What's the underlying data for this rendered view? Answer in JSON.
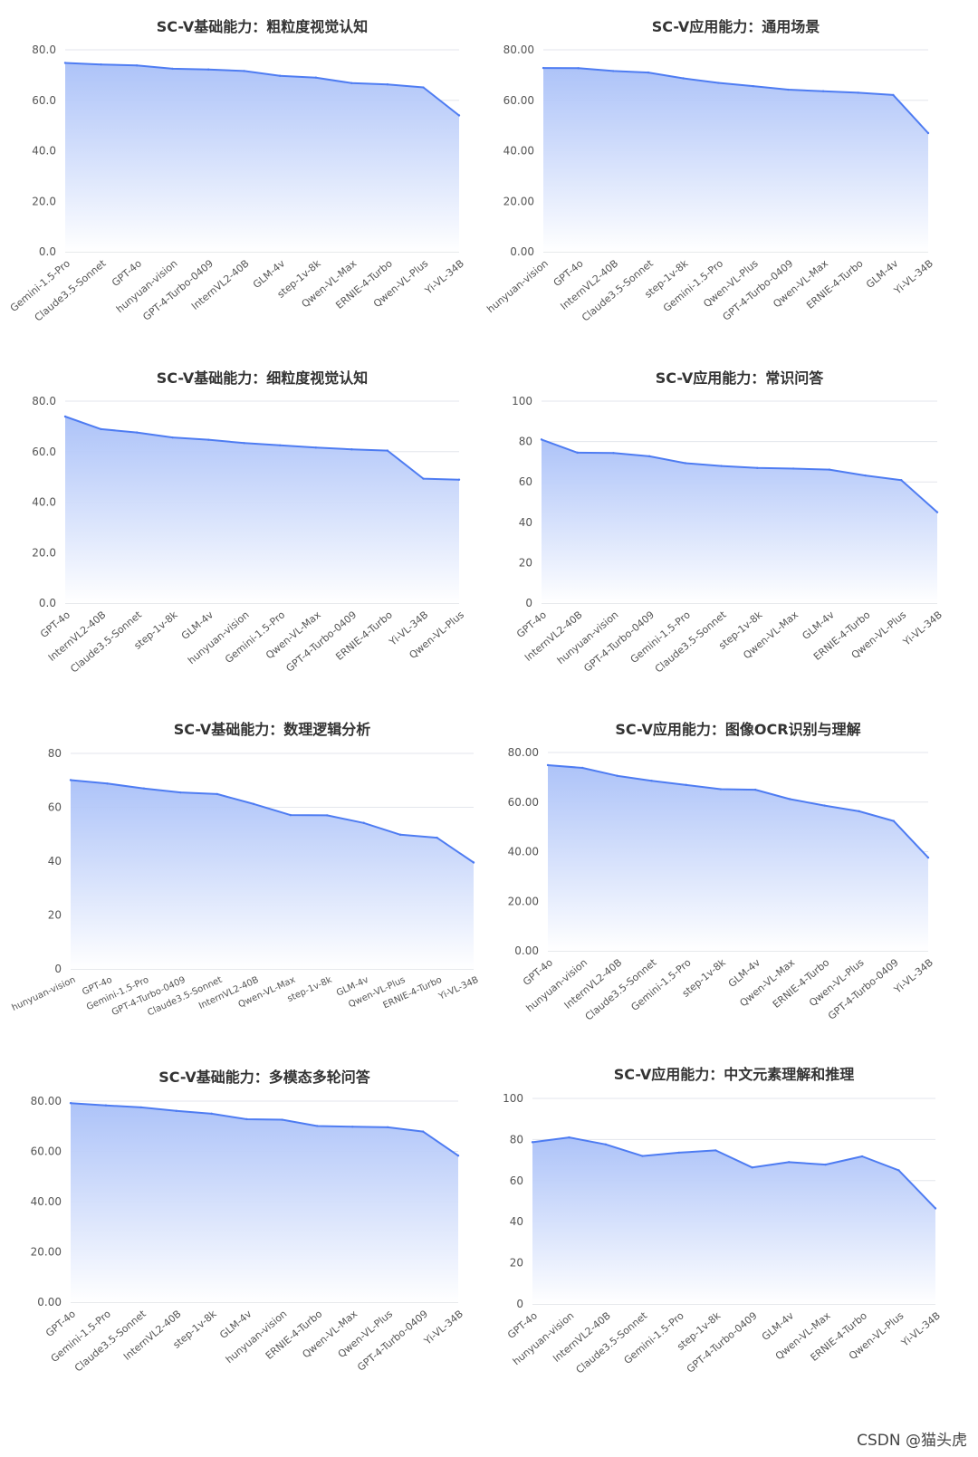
{
  "colors": {
    "line": "#4e7cf2",
    "fill_top": "#a9c0f8",
    "fill_bottom": "#ffffff",
    "grid": "#e3e6ec"
  },
  "watermark": "CSDN @猫头虎",
  "chart_data": [
    {
      "type": "area",
      "title": "SC-V基础能力：粗粒度视觉认知",
      "categories": [
        "Gemini-1.5-Pro",
        "Claude3.5-Sonnet",
        "GPT-4o",
        "hunyuan-vision",
        "GPT-4-Turbo-0409",
        "InternVL2-40B",
        "GLM-4v",
        "step-1v-8k",
        "Qwen-VL-Max",
        "ERNIE-4-Turbo",
        "Qwen-VL-Plus",
        "Yi-VL-34B"
      ],
      "values": [
        74.8,
        74.2,
        73.8,
        72.5,
        72.2,
        71.6,
        69.7,
        69.0,
        66.8,
        66.3,
        65.1,
        54.0
      ],
      "ylim": [
        0,
        80
      ],
      "yticks": [
        0,
        20,
        40,
        60,
        80
      ],
      "ytick_decimals": 1,
      "rotate": 40
    },
    {
      "type": "area",
      "title": "SC-V应用能力：通用场景",
      "categories": [
        "hunyuan-vision",
        "GPT-4o",
        "InternVL2-40B",
        "Claude3.5-Sonnet",
        "step-1v-8k",
        "Gemini-1.5-Pro",
        "Qwen-VL-Plus",
        "GPT-4-Turbo-0409",
        "Qwen-VL-Max",
        "ERNIE-4-Turbo",
        "GLM-4v",
        "Yi-VL-34B"
      ],
      "values": [
        72.8,
        72.7,
        71.6,
        71.0,
        68.7,
        66.9,
        65.6,
        64.2,
        63.6,
        63.0,
        62.1,
        47.0
      ],
      "ylim": [
        0,
        80
      ],
      "yticks": [
        0,
        20,
        40,
        60,
        80
      ],
      "ytick_decimals": 2,
      "rotate": 40
    },
    {
      "type": "area",
      "title": "SC-V基础能力：细粒度视觉认知",
      "categories": [
        "GPT-4o",
        "InternVL2-40B",
        "Claude3.5-Sonnet",
        "step-1v-8k",
        "GLM-4v",
        "hunyuan-vision",
        "Gemini-1.5-Pro",
        "Qwen-VL-Max",
        "GPT-4-Turbo-0409",
        "ERNIE-4-Turbo",
        "Yi-VL-34B",
        "Qwen-VL-Plus"
      ],
      "values": [
        73.9,
        68.9,
        67.6,
        65.6,
        64.7,
        63.4,
        62.5,
        61.6,
        60.9,
        60.4,
        49.3,
        48.9
      ],
      "ylim": [
        0,
        80
      ],
      "yticks": [
        0,
        20,
        40,
        60,
        80
      ],
      "ytick_decimals": 1,
      "rotate": 40
    },
    {
      "type": "area",
      "title": "SC-V应用能力：常识问答",
      "categories": [
        "GPT-4o",
        "InternVL2-40B",
        "hunyuan-vision",
        "GPT-4-Turbo-0409",
        "Gemini-1.5-Pro",
        "Claude3.5-Sonnet",
        "step-1v-8k",
        "Qwen-VL-Max",
        "GLM-4v",
        "ERNIE-4-Turbo",
        "Qwen-VL-Plus",
        "Yi-VL-34B"
      ],
      "values": [
        81.0,
        74.5,
        74.3,
        72.7,
        69.3,
        67.9,
        66.9,
        66.6,
        66.1,
        63.2,
        60.9,
        45.0
      ],
      "ylim": [
        0,
        100
      ],
      "yticks": [
        0,
        20,
        40,
        60,
        80,
        100
      ],
      "ytick_decimals": 0,
      "rotate": 40
    },
    {
      "type": "area",
      "title": "SC-V基础能力：数理逻辑分析",
      "categories": [
        "hunyuan-vision",
        "GPT-4o",
        "Gemini-1.5-Pro",
        "GPT-4-Turbo-0409",
        "Claude3.5-Sonnet",
        "InternVL2-40B",
        "Qwen-VL-Max",
        "step-1v-8k",
        "GLM-4v",
        "Qwen-VL-Plus",
        "ERNIE-4-Turbo",
        "Yi-VL-34B"
      ],
      "values": [
        70.1,
        68.8,
        67.0,
        65.5,
        64.9,
        61.2,
        57.1,
        57.0,
        54.2,
        49.8,
        48.7,
        39.5
      ],
      "ylim": [
        0,
        80
      ],
      "yticks": [
        0,
        20,
        40,
        60,
        80
      ],
      "ytick_decimals": 0,
      "rotate": 25
    },
    {
      "type": "area",
      "title": "SC-V应用能力：图像OCR识别与理解",
      "categories": [
        "GPT-4o",
        "hunyuan-vision",
        "InternVL2-40B",
        "Claude3.5-Sonnet",
        "Gemini-1.5-Pro",
        "step-1v-8k",
        "GLM-4v",
        "Qwen-VL-Max",
        "ERNIE-4-Turbo",
        "Qwen-VL-Plus",
        "GPT-4-Turbo-0409",
        "Yi-VL-34B"
      ],
      "values": [
        74.9,
        73.8,
        70.6,
        68.6,
        66.9,
        65.2,
        65.0,
        61.2,
        58.6,
        56.3,
        52.4,
        37.6
      ],
      "ylim": [
        0,
        80
      ],
      "yticks": [
        0,
        20,
        40,
        60,
        80
      ],
      "ytick_decimals": 2,
      "rotate": 40
    },
    {
      "type": "area",
      "title": "SC-V基础能力：多模态多轮问答",
      "categories": [
        "GPT-4o",
        "Gemini-1.5-Pro",
        "Claude3.5-Sonnet",
        "InternVL2-40B",
        "step-1v-8k",
        "GLM-4v",
        "hunyuan-vision",
        "ERNIE-4-Turbo",
        "Qwen-VL-Max",
        "Qwen-VL-Plus",
        "GPT-4-Turbo-0409",
        "Yi-VL-34B"
      ],
      "values": [
        79.2,
        78.3,
        77.5,
        76.1,
        75.0,
        72.8,
        72.6,
        70.1,
        69.8,
        69.6,
        67.9,
        58.3
      ],
      "ylim": [
        0,
        80
      ],
      "yticks": [
        0,
        20,
        40,
        60,
        80
      ],
      "ytick_decimals": 2,
      "rotate": 40
    },
    {
      "type": "area",
      "title": "SC-V应用能力：中文元素理解和推理",
      "categories": [
        "GPT-4o",
        "hunyuan-vision",
        "InternVL2-40B",
        "Claude3.5-Sonnet",
        "Gemini-1.5-Pro",
        "step-1v-8k",
        "GPT-4-Turbo-0409",
        "GLM-4v",
        "Qwen-VL-Max",
        "ERNIE-4-Turbo",
        "Qwen-VL-Plus",
        "Yi-VL-34B"
      ],
      "values": [
        78.7,
        81.0,
        77.6,
        72.0,
        73.6,
        74.7,
        66.4,
        69.0,
        67.8,
        71.8,
        65.0,
        46.5
      ],
      "ylim": [
        0,
        100
      ],
      "yticks": [
        0,
        20,
        40,
        60,
        80,
        100
      ],
      "ytick_decimals": 0,
      "rotate": 40
    }
  ]
}
